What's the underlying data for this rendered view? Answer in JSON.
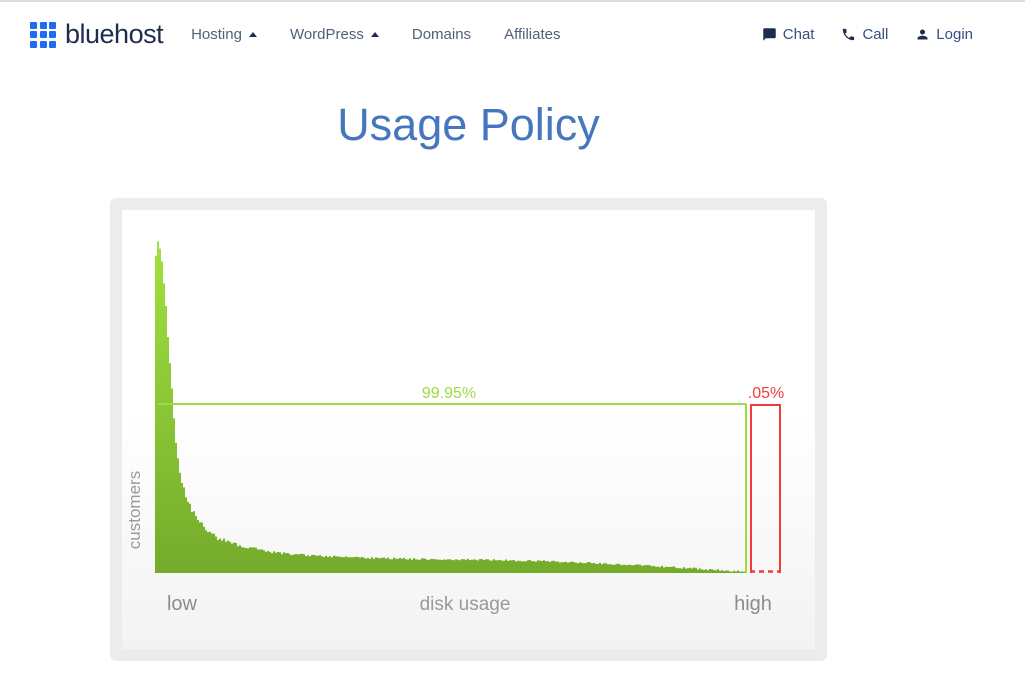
{
  "header": {
    "brand": "bluehost",
    "nav": [
      {
        "label": "Hosting",
        "has_caret": true
      },
      {
        "label": "WordPress",
        "has_caret": true
      },
      {
        "label": "Domains",
        "has_caret": false
      },
      {
        "label": "Affiliates",
        "has_caret": false
      }
    ],
    "actions": [
      {
        "label": "Chat",
        "icon": "chat-bubble-icon"
      },
      {
        "label": "Call",
        "icon": "phone-icon"
      },
      {
        "label": "Login",
        "icon": "person-icon"
      }
    ]
  },
  "page": {
    "heading": "Usage Policy"
  },
  "colors": {
    "brand_blue": "#1f6bf2",
    "brand_navy": "#1e2d4f",
    "title_blue": "#4677be",
    "green_line": "#9cdc3e",
    "green_fill_top": "#a0e23f",
    "green_fill_bottom": "#74ab2b",
    "red": "#f23c3c",
    "label_gray": "#9a9a9a",
    "card_bg": "#ececec"
  },
  "chart_data": {
    "type": "area",
    "title": "",
    "xlabel": "disk usage",
    "ylabel": "customers",
    "x_tick_labels": [
      "low",
      "high"
    ],
    "green_share_label": "99.95%",
    "red_share_label": ".05%",
    "green_region_share_pct": 99.95,
    "red_region_share_pct": 0.05,
    "legend_position": "none",
    "grid": false,
    "description": "Long-tail histogram: number of customers vs disk usage. 99.95% of customers fall under the green threshold line; the top .05% of disk usage is outlined by a red box at the far right.",
    "distribution_points": [
      [
        0.0,
        0.95
      ],
      [
        0.004,
        1.0
      ],
      [
        0.008,
        0.97
      ],
      [
        0.012,
        0.9
      ],
      [
        0.016,
        0.82
      ],
      [
        0.02,
        0.72
      ],
      [
        0.025,
        0.6
      ],
      [
        0.03,
        0.48
      ],
      [
        0.034,
        0.38
      ],
      [
        0.04,
        0.31
      ],
      [
        0.048,
        0.25
      ],
      [
        0.056,
        0.21
      ],
      [
        0.064,
        0.18
      ],
      [
        0.076,
        0.15
      ],
      [
        0.09,
        0.125
      ],
      [
        0.105,
        0.105
      ],
      [
        0.127,
        0.092
      ],
      [
        0.15,
        0.08
      ],
      [
        0.175,
        0.07
      ],
      [
        0.195,
        0.063
      ],
      [
        0.23,
        0.057
      ],
      [
        0.27,
        0.052
      ],
      [
        0.33,
        0.047
      ],
      [
        0.39,
        0.044
      ],
      [
        0.45,
        0.042
      ],
      [
        0.5,
        0.041
      ],
      [
        0.55,
        0.04
      ],
      [
        0.6,
        0.038
      ],
      [
        0.65,
        0.036
      ],
      [
        0.7,
        0.033
      ],
      [
        0.75,
        0.029
      ],
      [
        0.8,
        0.025
      ],
      [
        0.85,
        0.02
      ],
      [
        0.9,
        0.015
      ],
      [
        0.94,
        0.01
      ],
      [
        0.97,
        0.007
      ],
      [
        1.0,
        0.005
      ]
    ]
  }
}
